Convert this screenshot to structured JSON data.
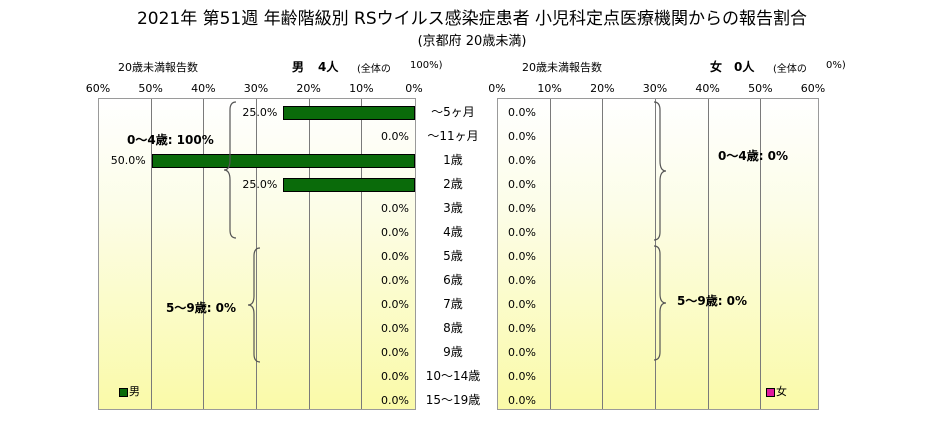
{
  "title": "2021年 第51週 年齢階級別 RSウイルス感染症患者 小児科定点医療機関からの報告割合",
  "subtitle": "(京都府 20歳未満)",
  "male_panel": {
    "count_label": "20歳未満報告数",
    "sex": "男",
    "persons": "4人",
    "share_label": "(全体の",
    "share_value": "100%)",
    "legend": "男",
    "group_label_0_4": "0～4歳: 100%",
    "group_label_5_9": "5～9歳: 0%"
  },
  "female_panel": {
    "count_label": "20歳未満報告数",
    "sex": "女",
    "persons": "0人",
    "share_label": "(全体の",
    "share_value": "0%)",
    "legend": "女",
    "group_label_0_4": "0～4歳: 0%",
    "group_label_5_9": "5～9歳: 0%"
  },
  "colors": {
    "male": "#0a6b0a",
    "female": "#e0199f",
    "grid": "#7a7a7a"
  },
  "chart_data": {
    "type": "bar",
    "orientation": "horizontal",
    "categories": [
      "～5ヶ月",
      "～11ヶ月",
      "1歳",
      "2歳",
      "3歳",
      "4歳",
      "5歳",
      "6歳",
      "7歳",
      "8歳",
      "9歳",
      "10～14歳",
      "15～19歳"
    ],
    "series": [
      {
        "name": "男",
        "values": [
          25,
          0,
          50,
          25,
          0,
          0,
          0,
          0,
          0,
          0,
          0,
          0,
          0
        ],
        "labels": [
          "25.0%",
          "0.0%",
          "50.0%",
          "25.0%",
          "0.0%",
          "0.0%",
          "0.0%",
          "0.0%",
          "0.0%",
          "0.0%",
          "0.0%",
          "0.0%",
          "0.0%"
        ]
      },
      {
        "name": "女",
        "values": [
          0,
          0,
          0,
          0,
          0,
          0,
          0,
          0,
          0,
          0,
          0,
          0,
          0
        ],
        "labels": [
          "0.0%",
          "0.0%",
          "0.0%",
          "0.0%",
          "0.0%",
          "0.0%",
          "0.0%",
          "0.0%",
          "0.0%",
          "0.0%",
          "0.0%",
          "0.0%",
          "0.0%"
        ]
      }
    ],
    "male_ticks": [
      "60%",
      "50%",
      "40%",
      "30%",
      "20%",
      "10%",
      "0%"
    ],
    "female_ticks": [
      "0%",
      "10%",
      "20%",
      "30%",
      "40%",
      "50%",
      "60%"
    ],
    "xlim": [
      0,
      60
    ],
    "grid": true,
    "legend_position": "bottom-left / bottom-right"
  }
}
